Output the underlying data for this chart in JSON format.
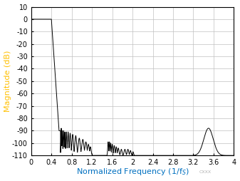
{
  "title": "",
  "xlabel": "Normalized Frequency (1/f_S)",
  "ylabel": "Magnitude (dB)",
  "xlim": [
    0,
    4
  ],
  "ylim": [
    -110,
    10
  ],
  "xticks": [
    0,
    0.4,
    0.8,
    1.2,
    1.6,
    2.0,
    2.4,
    2.8,
    3.2,
    3.6,
    4.0
  ],
  "yticks": [
    10,
    0,
    -10,
    -20,
    -30,
    -40,
    -50,
    -60,
    -70,
    -80,
    -90,
    -100,
    -110
  ],
  "line_color": "#000000",
  "grid_color": "#c0c0c0",
  "bg_color": "#ffffff",
  "axis_label_color_x": "#0070c0",
  "axis_label_color_y": "#ffc000",
  "tick_label_color": "#000000",
  "font_size_ticks": 7,
  "font_size_labels": 8
}
